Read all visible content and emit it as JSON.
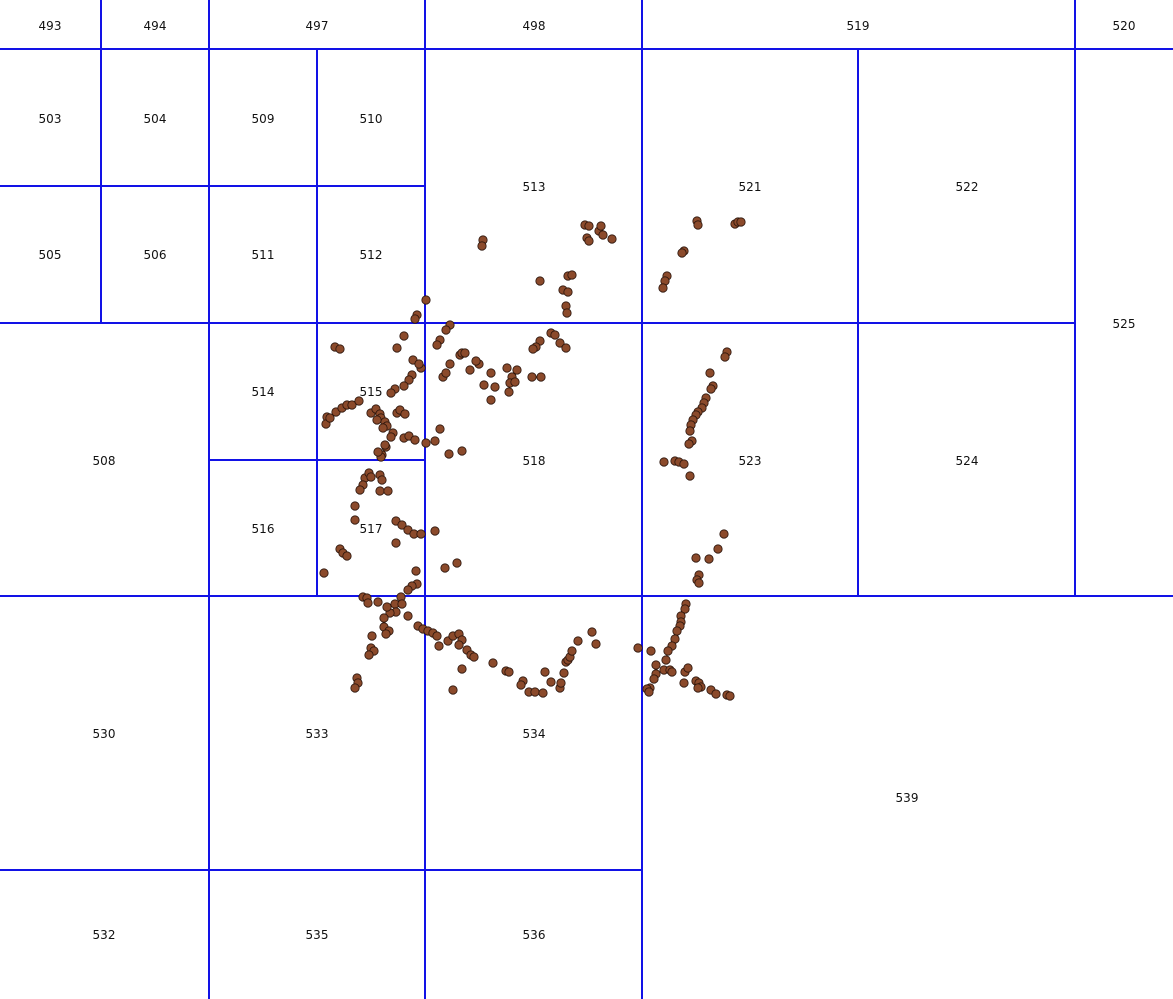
{
  "map": {
    "colors": {
      "grid": "#1212e6",
      "point_fill": "#8b4a2b",
      "point_stroke": "#2a140b",
      "background": "#ffffff"
    },
    "point_icon": "circle-point-icon",
    "cell_labels": [
      "493",
      "494",
      "497",
      "498",
      "519",
      "520",
      "503",
      "504",
      "509",
      "510",
      "513",
      "521",
      "522",
      "525",
      "505",
      "506",
      "511",
      "512",
      "508",
      "514",
      "515",
      "518",
      "523",
      "524",
      "516",
      "517",
      "530",
      "533",
      "534",
      "539",
      "532",
      "535",
      "536"
    ]
  }
}
